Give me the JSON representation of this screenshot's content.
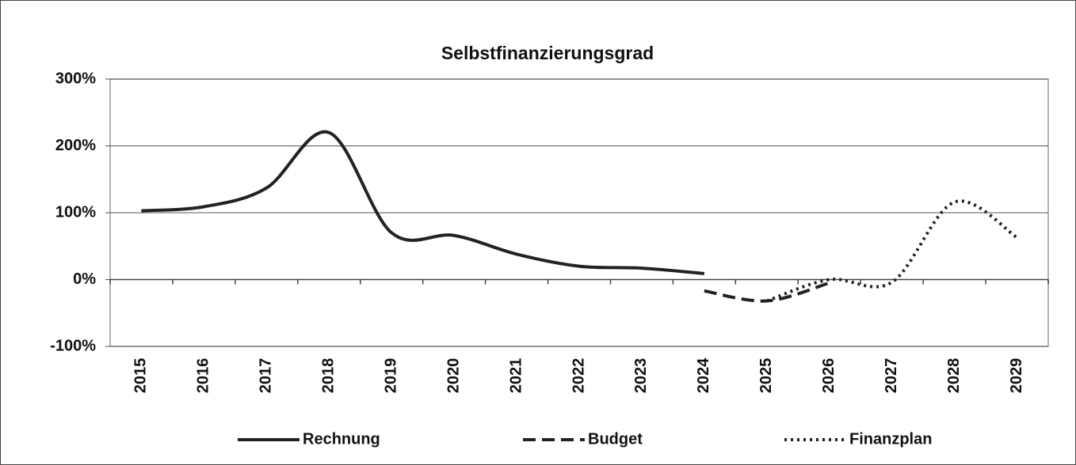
{
  "chart_data": {
    "type": "line",
    "title": "Selbstfinanzierungsgrad",
    "categories": [
      "2015",
      "2016",
      "2017",
      "2018",
      "2019",
      "2020",
      "2021",
      "2022",
      "2023",
      "2024",
      "2025",
      "2026",
      "2027",
      "2028",
      "2029"
    ],
    "series": [
      {
        "name": "Rechnung",
        "color": "#222222",
        "style": "solid",
        "values": [
          103,
          109,
          137,
          220,
          70,
          66,
          38,
          20,
          17,
          9,
          null,
          null,
          null,
          null,
          null
        ]
      },
      {
        "name": "Budget",
        "color": "#222222",
        "style": "dashed",
        "values": [
          null,
          null,
          null,
          null,
          null,
          null,
          null,
          null,
          null,
          -17,
          -32,
          -5,
          null,
          null,
          null
        ]
      },
      {
        "name": "Finanzplan",
        "color": "#222222",
        "style": "dotted",
        "values": [
          null,
          null,
          null,
          null,
          null,
          null,
          null,
          null,
          null,
          null,
          -32,
          0,
          -4,
          116,
          63
        ]
      }
    ],
    "smooth": true,
    "ylim": [
      -100,
      300
    ],
    "yticks": [
      {
        "value": -100,
        "label": "-100%"
      },
      {
        "value": 0,
        "label": "0%"
      },
      {
        "value": 100,
        "label": "100%"
      },
      {
        "value": 200,
        "label": "200%"
      },
      {
        "value": 300,
        "label": "300%"
      }
    ],
    "grid": true,
    "legend": "bottom"
  }
}
